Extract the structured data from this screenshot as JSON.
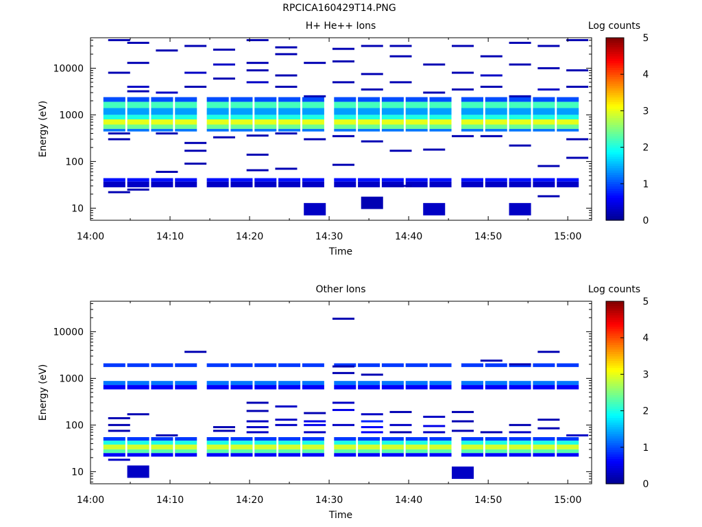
{
  "page": {
    "title": "RPCICA160429T14.PNG"
  },
  "colors": {
    "colormap": [
      "#00008f",
      "#0000ff",
      "#0080ff",
      "#00ffff",
      "#80ff80",
      "#ffff00",
      "#ff8000",
      "#ff0000",
      "#800000"
    ],
    "axis": "#000000",
    "background": "#ffffff"
  },
  "chart_data": [
    {
      "type": "heatmap",
      "title": "H+ He++ Ions",
      "xlabel": "Time",
      "ylabel": "Energy (eV)",
      "yscale": "log",
      "xlim": [
        "14:00",
        "15:03"
      ],
      "ylim": [
        5.5,
        45000
      ],
      "x_ticks": [
        "14:00",
        "14:10",
        "14:20",
        "14:30",
        "14:40",
        "14:50",
        "15:00"
      ],
      "y_ticks": [
        "10",
        "100",
        "1000",
        "10000"
      ],
      "colorbar": {
        "label": "Log counts",
        "min": 0,
        "max": 5,
        "ticks": [
          "0",
          "1",
          "2",
          "3",
          "4",
          "5"
        ]
      },
      "time_bins": [
        "14:03",
        "14:06",
        "14:09",
        "14:12",
        "14:16",
        "14:19",
        "14:22",
        "14:25",
        "14:28",
        "14:32",
        "14:35",
        "14:38",
        "14:41",
        "14:44",
        "14:48",
        "14:51",
        "14:54",
        "14:57",
        "15:00"
      ],
      "bands": [
        {
          "emin": 2400,
          "emax": 1900,
          "z": 1.0
        },
        {
          "emin": 1900,
          "emax": 1400,
          "z": 2.2
        },
        {
          "emin": 1400,
          "emax": 1000,
          "z": 1.4
        },
        {
          "emin": 1000,
          "emax": 800,
          "z": 2.0
        },
        {
          "emin": 800,
          "emax": 620,
          "z": 3.0
        },
        {
          "emin": 620,
          "emax": 500,
          "z": 2.4
        },
        {
          "emin": 500,
          "emax": 440,
          "z": 1.2
        },
        {
          "emin": 44,
          "emax": 37,
          "z": 0.7
        },
        {
          "emin": 37,
          "emax": 28,
          "z": 0.3
        }
      ],
      "sparse": [
        [
          14.06,
          40000,
          0.2
        ],
        [
          14.06,
          8000,
          0.2
        ],
        [
          14.06,
          400,
          0.2
        ],
        [
          14.06,
          300,
          0.2
        ],
        [
          14.06,
          22,
          0.2
        ],
        [
          14.1,
          35000,
          0.2
        ],
        [
          14.1,
          13000,
          0.2
        ],
        [
          14.1,
          4000,
          0.3
        ],
        [
          14.1,
          3200,
          0.2
        ],
        [
          14.1,
          25,
          0.2
        ],
        [
          14.16,
          24000,
          0.2
        ],
        [
          14.16,
          3000,
          0.3
        ],
        [
          14.16,
          400,
          0.2
        ],
        [
          14.16,
          60,
          0.2
        ],
        [
          14.22,
          30000,
          0.2
        ],
        [
          14.22,
          8000,
          0.3
        ],
        [
          14.22,
          4000,
          0.2
        ],
        [
          14.22,
          250,
          0.2
        ],
        [
          14.22,
          170,
          0.2
        ],
        [
          14.22,
          90,
          0.2
        ],
        [
          14.28,
          25000,
          0.2
        ],
        [
          14.28,
          12000,
          0.3
        ],
        [
          14.28,
          6000,
          0.2
        ],
        [
          14.28,
          330,
          0.2
        ],
        [
          14.35,
          40000,
          0.2
        ],
        [
          14.35,
          13000,
          0.2
        ],
        [
          14.35,
          9000,
          0.2
        ],
        [
          14.35,
          5000,
          0.3
        ],
        [
          14.35,
          360,
          0.2
        ],
        [
          14.35,
          140,
          0.2
        ],
        [
          14.35,
          65,
          0.2
        ],
        [
          14.41,
          28000,
          0.2
        ],
        [
          14.41,
          20000,
          0.2
        ],
        [
          14.41,
          7000,
          0.2
        ],
        [
          14.41,
          4000,
          0.2
        ],
        [
          14.41,
          400,
          0.2
        ],
        [
          14.41,
          70,
          0.2
        ],
        [
          14.47,
          13000,
          0.2
        ],
        [
          14.47,
          2500,
          0.2
        ],
        [
          14.47,
          300,
          0.2
        ],
        [
          14.47,
          9.5,
          0.3
        ],
        [
          14.53,
          26000,
          0.2
        ],
        [
          14.53,
          14000,
          0.2
        ],
        [
          14.53,
          5000,
          0.2
        ],
        [
          14.53,
          350,
          0.2
        ],
        [
          14.53,
          85,
          0.2
        ],
        [
          14.59,
          30000,
          0.2
        ],
        [
          14.59,
          7500,
          0.2
        ],
        [
          14.59,
          3500,
          0.2
        ],
        [
          14.59,
          270,
          0.2
        ],
        [
          14.59,
          13,
          0.2
        ],
        [
          14.65,
          30000,
          0.2
        ],
        [
          14.65,
          18000,
          0.2
        ],
        [
          14.65,
          5000,
          0.2
        ],
        [
          14.65,
          170,
          0.2
        ],
        [
          14.65,
          30,
          0.2
        ],
        [
          14.72,
          12000,
          0.2
        ],
        [
          14.72,
          3000,
          0.2
        ],
        [
          14.72,
          180,
          0.2
        ],
        [
          14.72,
          9.5,
          0.3
        ],
        [
          14.78,
          30000,
          0.2
        ],
        [
          14.78,
          8000,
          0.2
        ],
        [
          14.78,
          3500,
          0.2
        ],
        [
          14.78,
          350,
          0.2
        ],
        [
          14.84,
          18000,
          0.2
        ],
        [
          14.84,
          7000,
          0.3
        ],
        [
          14.84,
          4000,
          0.2
        ],
        [
          14.84,
          350,
          0.2
        ],
        [
          14.9,
          35000,
          0.2
        ],
        [
          14.9,
          12000,
          0.2
        ],
        [
          14.9,
          2500,
          0.2
        ],
        [
          14.9,
          220,
          0.2
        ],
        [
          14.9,
          9.5,
          0.3
        ],
        [
          14.96,
          30000,
          0.2
        ],
        [
          14.96,
          10000,
          0.2
        ],
        [
          14.96,
          3500,
          0.3
        ],
        [
          14.96,
          80,
          0.2
        ],
        [
          14.96,
          18,
          0.2
        ],
        [
          15.02,
          40000,
          0.2
        ],
        [
          15.02,
          9000,
          0.2
        ],
        [
          15.02,
          4000,
          0.2
        ],
        [
          15.02,
          300,
          0.2
        ],
        [
          15.02,
          120,
          0.2
        ]
      ]
    },
    {
      "type": "heatmap",
      "title": "Other Ions",
      "xlabel": "Time",
      "ylabel": "Energy (eV)",
      "yscale": "log",
      "xlim": [
        "14:00",
        "15:03"
      ],
      "ylim": [
        5.5,
        45000
      ],
      "x_ticks": [
        "14:00",
        "14:10",
        "14:20",
        "14:30",
        "14:40",
        "14:50",
        "15:00"
      ],
      "y_ticks": [
        "10",
        "100",
        "1000",
        "10000"
      ],
      "colorbar": {
        "label": "Log counts",
        "min": 0,
        "max": 5,
        "ticks": [
          "0",
          "1",
          "2",
          "3",
          "4",
          "5"
        ]
      },
      "time_bins": [
        "14:03",
        "14:06",
        "14:09",
        "14:12",
        "14:16",
        "14:19",
        "14:22",
        "14:25",
        "14:28",
        "14:32",
        "14:35",
        "14:38",
        "14:41",
        "14:44",
        "14:48",
        "14:51",
        "14:54",
        "14:57",
        "15:00"
      ],
      "bands": [
        {
          "emin": 2100,
          "emax": 1750,
          "z": 0.9
        },
        {
          "emin": 880,
          "emax": 720,
          "z": 1.2
        },
        {
          "emin": 720,
          "emax": 580,
          "z": 0.6
        },
        {
          "emin": 55,
          "emax": 46,
          "z": 0.9
        },
        {
          "emin": 46,
          "emax": 38,
          "z": 2.0
        },
        {
          "emin": 38,
          "emax": 30,
          "z": 2.9
        },
        {
          "emin": 30,
          "emax": 25,
          "z": 2.3
        },
        {
          "emin": 25,
          "emax": 21,
          "z": 0.6
        }
      ],
      "sparse": [
        [
          14.06,
          140,
          0.2
        ],
        [
          14.06,
          100,
          0.2
        ],
        [
          14.06,
          75,
          0.2
        ],
        [
          14.06,
          18,
          0.3
        ],
        [
          14.1,
          170,
          0.2
        ],
        [
          14.1,
          10,
          0.3
        ],
        [
          14.16,
          60,
          0.2
        ],
        [
          14.22,
          3700,
          0.2
        ],
        [
          14.28,
          90,
          0.2
        ],
        [
          14.28,
          75,
          0.2
        ],
        [
          14.35,
          300,
          0.2
        ],
        [
          14.35,
          200,
          0.2
        ],
        [
          14.35,
          120,
          0.3
        ],
        [
          14.35,
          90,
          0.3
        ],
        [
          14.35,
          70,
          0.3
        ],
        [
          14.41,
          250,
          0.3
        ],
        [
          14.41,
          130,
          0.3
        ],
        [
          14.41,
          100,
          0.3
        ],
        [
          14.47,
          180,
          0.2
        ],
        [
          14.47,
          120,
          0.5
        ],
        [
          14.47,
          100,
          0.5
        ],
        [
          14.47,
          70,
          0.3
        ],
        [
          14.53,
          19000,
          0.2
        ],
        [
          14.53,
          1800,
          0.2
        ],
        [
          14.53,
          1300,
          0.2
        ],
        [
          14.53,
          300,
          0.3
        ],
        [
          14.53,
          210,
          0.5
        ],
        [
          14.53,
          100,
          0.3
        ],
        [
          14.59,
          1200,
          0.2
        ],
        [
          14.59,
          170,
          0.3
        ],
        [
          14.59,
          120,
          0.8
        ],
        [
          14.59,
          90,
          0.6
        ],
        [
          14.59,
          70,
          0.6
        ],
        [
          14.65,
          190,
          0.2
        ],
        [
          14.65,
          100,
          0.3
        ],
        [
          14.65,
          70,
          0.2
        ],
        [
          14.72,
          150,
          0.3
        ],
        [
          14.72,
          95,
          0.5
        ],
        [
          14.72,
          70,
          0.3
        ],
        [
          14.78,
          190,
          0.2
        ],
        [
          14.78,
          120,
          0.2
        ],
        [
          14.78,
          75,
          0.2
        ],
        [
          14.78,
          9.5,
          0.3
        ],
        [
          14.84,
          2400,
          0.2
        ],
        [
          14.84,
          70,
          0.2
        ],
        [
          14.9,
          2000,
          0.2
        ],
        [
          14.9,
          100,
          0.2
        ],
        [
          14.9,
          70,
          0.3
        ],
        [
          14.96,
          3700,
          0.2
        ],
        [
          14.96,
          130,
          0.2
        ],
        [
          14.96,
          85,
          0.2
        ],
        [
          15.02,
          60,
          0.3
        ]
      ]
    }
  ]
}
